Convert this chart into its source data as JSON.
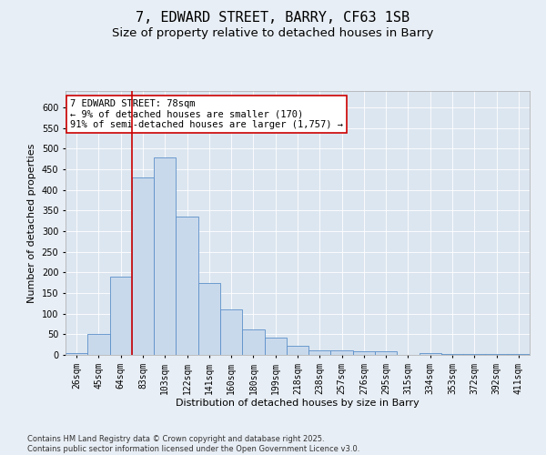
{
  "title": "7, EDWARD STREET, BARRY, CF63 1SB",
  "subtitle": "Size of property relative to detached houses in Barry",
  "xlabel": "Distribution of detached houses by size in Barry",
  "ylabel": "Number of detached properties",
  "categories": [
    "26sqm",
    "45sqm",
    "64sqm",
    "83sqm",
    "103sqm",
    "122sqm",
    "141sqm",
    "160sqm",
    "180sqm",
    "199sqm",
    "218sqm",
    "238sqm",
    "257sqm",
    "276sqm",
    "295sqm",
    "315sqm",
    "334sqm",
    "353sqm",
    "372sqm",
    "392sqm",
    "411sqm"
  ],
  "values": [
    5,
    50,
    190,
    430,
    480,
    335,
    175,
    110,
    62,
    43,
    22,
    10,
    10,
    8,
    8,
    0,
    5,
    3,
    2,
    3,
    2
  ],
  "bar_color": "#c9d9ec",
  "bar_edge_color": "#5b8fc9",
  "vline_color": "#cc0000",
  "annotation_text": "7 EDWARD STREET: 78sqm\n← 9% of detached houses are smaller (170)\n91% of semi-detached houses are larger (1,757) →",
  "annotation_box_color": "#ffffff",
  "annotation_box_edge": "#cc0000",
  "ylim": [
    0,
    640
  ],
  "yticks": [
    0,
    50,
    100,
    150,
    200,
    250,
    300,
    350,
    400,
    450,
    500,
    550,
    600
  ],
  "background_color": "#e8eef5",
  "plot_bg_color": "#dce6f0",
  "footer": "Contains HM Land Registry data © Crown copyright and database right 2025.\nContains public sector information licensed under the Open Government Licence v3.0.",
  "title_fontsize": 11,
  "subtitle_fontsize": 9.5,
  "axis_label_fontsize": 8,
  "tick_fontsize": 7,
  "annotation_fontsize": 7.5,
  "footer_fontsize": 6
}
